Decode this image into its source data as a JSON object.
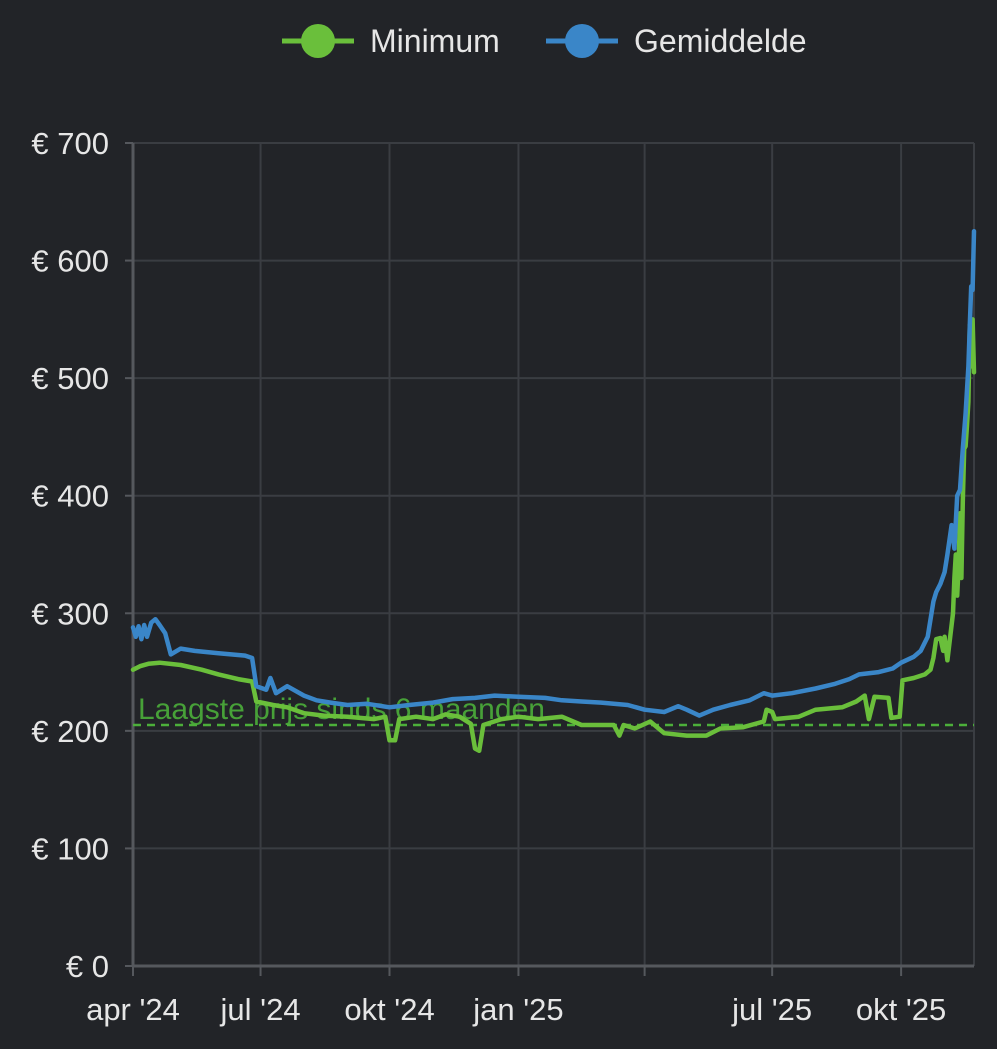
{
  "chart_data": {
    "type": "line",
    "title": "",
    "xlabel": "",
    "ylabel": "",
    "ylim": [
      0,
      700
    ],
    "y_ticks": [
      0,
      100,
      200,
      300,
      400,
      500,
      600,
      700
    ],
    "y_tick_labels": [
      "€ 0",
      "€ 100",
      "€ 200",
      "€ 300",
      "€ 400",
      "€ 500",
      "€ 600",
      "€ 700"
    ],
    "x_range": [
      "2024-04-01",
      "2025-11-22"
    ],
    "x_ticks": [
      {
        "date": "2024-04-01",
        "label": "apr '24"
      },
      {
        "date": "2024-07-01",
        "label": "jul '24"
      },
      {
        "date": "2024-10-01",
        "label": "okt '24"
      },
      {
        "date": "2025-01-01",
        "label": "jan '25"
      },
      {
        "date": "2025-04-01",
        "label": ""
      },
      {
        "date": "2025-07-01",
        "label": "jul '25"
      },
      {
        "date": "2025-10-01",
        "label": "okt '25"
      }
    ],
    "grid": true,
    "legend_position": "top-center",
    "series": [
      {
        "name": "Minimum",
        "color": "#6abf3b",
        "points": [
          [
            "2024-04-01",
            252
          ],
          [
            "2024-04-06",
            255
          ],
          [
            "2024-04-12",
            257
          ],
          [
            "2024-04-20",
            258
          ],
          [
            "2024-05-05",
            256
          ],
          [
            "2024-05-20",
            252
          ],
          [
            "2024-06-01",
            248
          ],
          [
            "2024-06-15",
            244
          ],
          [
            "2024-06-25",
            242
          ],
          [
            "2024-06-28",
            225
          ],
          [
            "2024-07-10",
            222
          ],
          [
            "2024-07-20",
            220
          ],
          [
            "2024-08-01",
            215
          ],
          [
            "2024-08-15",
            213
          ],
          [
            "2024-09-01",
            212
          ],
          [
            "2024-09-20",
            210
          ],
          [
            "2024-09-28",
            212
          ],
          [
            "2024-10-01",
            192
          ],
          [
            "2024-10-05",
            192
          ],
          [
            "2024-10-08",
            210
          ],
          [
            "2024-10-20",
            212
          ],
          [
            "2024-11-01",
            210
          ],
          [
            "2024-11-10",
            214
          ],
          [
            "2024-11-20",
            212
          ],
          [
            "2024-11-28",
            206
          ],
          [
            "2024-12-01",
            185
          ],
          [
            "2024-12-04",
            183
          ],
          [
            "2024-12-07",
            205
          ],
          [
            "2024-12-20",
            210
          ],
          [
            "2025-01-01",
            212
          ],
          [
            "2025-01-15",
            210
          ],
          [
            "2025-02-01",
            212
          ],
          [
            "2025-02-15",
            205
          ],
          [
            "2025-03-01",
            205
          ],
          [
            "2025-03-10",
            205
          ],
          [
            "2025-03-14",
            196
          ],
          [
            "2025-03-17",
            205
          ],
          [
            "2025-03-25",
            202
          ],
          [
            "2025-04-05",
            208
          ],
          [
            "2025-04-15",
            198
          ],
          [
            "2025-05-01",
            196
          ],
          [
            "2025-05-15",
            196
          ],
          [
            "2025-05-25",
            202
          ],
          [
            "2025-06-10",
            203
          ],
          [
            "2025-06-25",
            208
          ],
          [
            "2025-06-27",
            218
          ],
          [
            "2025-07-01",
            216
          ],
          [
            "2025-07-03",
            210
          ],
          [
            "2025-07-20",
            212
          ],
          [
            "2025-08-01",
            218
          ],
          [
            "2025-08-20",
            220
          ],
          [
            "2025-08-30",
            225
          ],
          [
            "2025-09-05",
            230
          ],
          [
            "2025-09-08",
            210
          ],
          [
            "2025-09-12",
            229
          ],
          [
            "2025-09-22",
            228
          ],
          [
            "2025-09-24",
            211
          ],
          [
            "2025-09-30",
            212
          ],
          [
            "2025-10-02",
            243
          ],
          [
            "2025-10-10",
            245
          ],
          [
            "2025-10-18",
            248
          ],
          [
            "2025-10-22",
            252
          ],
          [
            "2025-10-24",
            262
          ],
          [
            "2025-10-26",
            278
          ],
          [
            "2025-10-29",
            279
          ],
          [
            "2025-10-31",
            268
          ],
          [
            "2025-11-01",
            280
          ],
          [
            "2025-11-03",
            260
          ],
          [
            "2025-11-05",
            280
          ],
          [
            "2025-11-07",
            300
          ],
          [
            "2025-11-08",
            330
          ],
          [
            "2025-11-09",
            350
          ],
          [
            "2025-11-10",
            315
          ],
          [
            "2025-11-11",
            340
          ],
          [
            "2025-11-12",
            385
          ],
          [
            "2025-11-13",
            330
          ],
          [
            "2025-11-14",
            395
          ],
          [
            "2025-11-15",
            440
          ],
          [
            "2025-11-16",
            442
          ],
          [
            "2025-11-17",
            460
          ],
          [
            "2025-11-18",
            480
          ],
          [
            "2025-11-19",
            545
          ],
          [
            "2025-11-20",
            510
          ],
          [
            "2025-11-21",
            550
          ],
          [
            "2025-11-22",
            505
          ]
        ]
      },
      {
        "name": "Gemiddelde",
        "color": "#3a86c8",
        "points": [
          [
            "2024-04-01",
            288
          ],
          [
            "2024-04-03",
            280
          ],
          [
            "2024-04-05",
            289
          ],
          [
            "2024-04-07",
            278
          ],
          [
            "2024-04-09",
            290
          ],
          [
            "2024-04-11",
            280
          ],
          [
            "2024-04-14",
            292
          ],
          [
            "2024-04-17",
            295
          ],
          [
            "2024-04-20",
            290
          ],
          [
            "2024-04-24",
            283
          ],
          [
            "2024-04-28",
            265
          ],
          [
            "2024-05-05",
            270
          ],
          [
            "2024-05-15",
            268
          ],
          [
            "2024-06-01",
            266
          ],
          [
            "2024-06-10",
            265
          ],
          [
            "2024-06-20",
            264
          ],
          [
            "2024-06-25",
            262
          ],
          [
            "2024-06-28",
            238
          ],
          [
            "2024-07-05",
            235
          ],
          [
            "2024-07-08",
            245
          ],
          [
            "2024-07-12",
            232
          ],
          [
            "2024-07-20",
            238
          ],
          [
            "2024-08-01",
            230
          ],
          [
            "2024-08-10",
            226
          ],
          [
            "2024-08-20",
            224
          ],
          [
            "2024-09-01",
            222
          ],
          [
            "2024-09-15",
            223
          ],
          [
            "2024-10-01",
            220
          ],
          [
            "2024-10-15",
            222
          ],
          [
            "2024-11-01",
            224
          ],
          [
            "2024-11-15",
            227
          ],
          [
            "2024-12-01",
            228
          ],
          [
            "2024-12-15",
            230
          ],
          [
            "2025-01-01",
            229
          ],
          [
            "2025-01-20",
            228
          ],
          [
            "2025-02-01",
            226
          ],
          [
            "2025-02-15",
            225
          ],
          [
            "2025-03-01",
            224
          ],
          [
            "2025-03-20",
            222
          ],
          [
            "2025-04-01",
            218
          ],
          [
            "2025-04-15",
            216
          ],
          [
            "2025-04-25",
            221
          ],
          [
            "2025-05-01",
            218
          ],
          [
            "2025-05-10",
            213
          ],
          [
            "2025-05-20",
            218
          ],
          [
            "2025-06-01",
            222
          ],
          [
            "2025-06-15",
            226
          ],
          [
            "2025-06-25",
            232
          ],
          [
            "2025-07-01",
            230
          ],
          [
            "2025-07-15",
            232
          ],
          [
            "2025-08-01",
            236
          ],
          [
            "2025-08-15",
            240
          ],
          [
            "2025-08-25",
            244
          ],
          [
            "2025-09-01",
            248
          ],
          [
            "2025-09-15",
            250
          ],
          [
            "2025-09-25",
            253
          ],
          [
            "2025-10-01",
            258
          ],
          [
            "2025-10-10",
            263
          ],
          [
            "2025-10-15",
            268
          ],
          [
            "2025-10-20",
            280
          ],
          [
            "2025-10-24",
            310
          ],
          [
            "2025-10-26",
            318
          ],
          [
            "2025-10-29",
            325
          ],
          [
            "2025-11-01",
            335
          ],
          [
            "2025-11-03",
            350
          ],
          [
            "2025-11-06",
            375
          ],
          [
            "2025-11-08",
            355
          ],
          [
            "2025-11-10",
            400
          ],
          [
            "2025-11-12",
            405
          ],
          [
            "2025-11-14",
            440
          ],
          [
            "2025-11-16",
            470
          ],
          [
            "2025-11-18",
            510
          ],
          [
            "2025-11-19",
            545
          ],
          [
            "2025-11-20",
            578
          ],
          [
            "2025-11-21",
            575
          ],
          [
            "2025-11-22",
            625
          ]
        ]
      }
    ],
    "reference_line": {
      "value": 205,
      "label": "Laagste prijs sinds 6 maanden",
      "color": "#4caf3a"
    }
  }
}
